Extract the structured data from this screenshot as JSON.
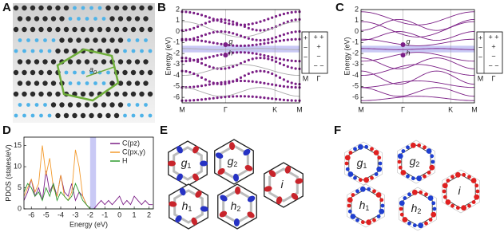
{
  "panels": {
    "A": {
      "label": "A",
      "lattice": "a",
      "lattice_sub": "0"
    },
    "B": {
      "label": "B",
      "ylabel": "Energy (eV)",
      "ylim": [
        -6.5,
        2
      ],
      "yticks": [
        2,
        1,
        0,
        -1,
        -2,
        -3,
        -4,
        -5,
        -6
      ],
      "xticks": [
        "M",
        "Γ",
        "K",
        "M"
      ],
      "g": "g",
      "h": "h",
      "gap_band": [
        -1.9,
        -1.3
      ],
      "legend_cols": [
        "M",
        "Γ"
      ],
      "signs_M": [
        "+",
        "−",
        "−"
      ],
      "signs_G": [
        "+ +",
        "+",
        "−",
        "− −"
      ]
    },
    "C": {
      "label": "C",
      "ylabel": "Energy (eV)",
      "ylim": [
        -6.5,
        2
      ],
      "yticks": [
        2,
        1,
        0,
        -1,
        -2,
        -3,
        -4,
        -5,
        -6
      ],
      "xticks": [
        "M",
        "Γ",
        "K",
        "M"
      ],
      "g": "g",
      "h": "h",
      "gap_band": [
        -1.9,
        -1.3
      ],
      "legend_cols": [
        "M",
        "Γ"
      ],
      "signs_M": [
        "+",
        "−",
        "−"
      ],
      "signs_G": [
        "+ +",
        "+",
        "−",
        "− −"
      ]
    },
    "D": {
      "label": "D",
      "type": "line",
      "xlabel": "Energy (eV)",
      "ylabel": "PDOS (states/eV)",
      "xlim": [
        -6.5,
        2.3
      ],
      "ylim": [
        0,
        17
      ],
      "xticks": [
        -6,
        -5,
        -4,
        -3,
        -2,
        -1,
        0,
        1,
        2
      ],
      "yticks": [
        0,
        5,
        10,
        15
      ],
      "gap_band": [
        -2,
        -1.6
      ],
      "x": [
        -6.5,
        -6.25,
        -6,
        -5.75,
        -5.5,
        -5.25,
        -5,
        -4.75,
        -4.5,
        -4.25,
        -4,
        -3.75,
        -3.5,
        -3.25,
        -3,
        -2.75,
        -2.5,
        -2.25,
        -2,
        -1.75,
        -1.5,
        -1.25,
        -1,
        -0.75,
        -0.5,
        -0.25,
        0,
        0.25,
        0.5,
        0.75,
        1,
        1.25,
        1.5,
        1.75,
        2,
        2.25
      ],
      "series": [
        {
          "name": "C(pz)",
          "color": "#7b1f86",
          "values": [
            2,
            4,
            7,
            3,
            5,
            2,
            9,
            4,
            6,
            3,
            8,
            4,
            3,
            6,
            2,
            4,
            3,
            1,
            0,
            0,
            1,
            2,
            1,
            2,
            1,
            2,
            3,
            1,
            2,
            1,
            3,
            2,
            1,
            2,
            1,
            1
          ]
        },
        {
          "name": "C(px,y)",
          "color": "#f39a2d",
          "values": [
            3,
            5,
            7,
            4,
            6,
            15,
            8,
            12,
            5,
            3,
            8,
            3,
            2,
            4,
            14,
            10,
            3,
            1,
            0,
            0,
            0,
            0,
            0,
            0,
            0,
            0,
            0,
            0,
            0,
            0,
            0,
            0,
            0,
            0,
            0,
            0
          ]
        },
        {
          "name": "H",
          "color": "#2e9a2e",
          "values": [
            4,
            6,
            5,
            3,
            4,
            2,
            5,
            3,
            6,
            2,
            4,
            3,
            2,
            3,
            6,
            4,
            2,
            1,
            0,
            0,
            0,
            0,
            0,
            0,
            0,
            0,
            0,
            0,
            0,
            0,
            0,
            0,
            0,
            0,
            0,
            0
          ]
        }
      ]
    },
    "E": {
      "label": "E",
      "orbitals": [
        {
          "name": "g",
          "sub": "1"
        },
        {
          "name": "g",
          "sub": "2"
        },
        {
          "name": "i",
          "sub": ""
        },
        {
          "name": "h",
          "sub": "1"
        },
        {
          "name": "h",
          "sub": "2"
        }
      ]
    },
    "F": {
      "label": "F",
      "orbitals": [
        {
          "name": "g",
          "sub": "1"
        },
        {
          "name": "g",
          "sub": "2"
        },
        {
          "name": "i",
          "sub": ""
        },
        {
          "name": "h",
          "sub": "1"
        },
        {
          "name": "h",
          "sub": "2"
        }
      ]
    }
  }
}
